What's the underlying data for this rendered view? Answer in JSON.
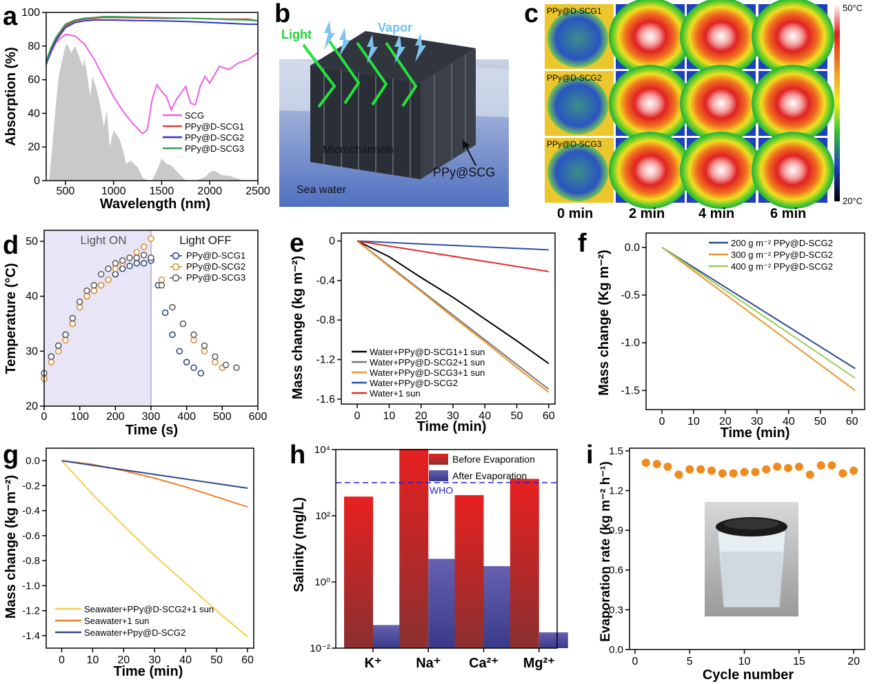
{
  "panels": {
    "a": "a",
    "b": "b",
    "c": "c",
    "d": "d",
    "e": "e",
    "f": "f",
    "g": "g",
    "h": "h",
    "i": "i"
  },
  "panel_b": {
    "light": "Light",
    "vapor": "Vapor",
    "microchannels": "Microchannels",
    "ppy_scg": "PPy@SCG",
    "sea_water": "Sea water"
  },
  "panel_c": {
    "rows": [
      "PPy@D-SCG1",
      "PPy@D-SCG2",
      "PPy@D-SCG3"
    ],
    "times": [
      "0 min",
      "2 min",
      "4 min",
      "6 min"
    ],
    "scale_max": "50°C",
    "scale_min": "20°C"
  },
  "panel_i": {
    "photo": "photo of sample floating in water in a glass beaker"
  },
  "chart_data": [
    {
      "panel": "a",
      "type": "line",
      "xlabel": "Wavelength (nm)",
      "ylabel": "Absorption (%)",
      "xlim": [
        300,
        2500
      ],
      "ylim": [
        0,
        100
      ],
      "xticks": [
        500,
        1000,
        1500,
        2000,
        2500
      ],
      "yticks": [
        0,
        20,
        40,
        60,
        80,
        100
      ],
      "legend_position": "lower-right",
      "solar_spectrum_background": {
        "x": [
          330,
          360,
          400,
          430,
          460,
          500,
          520,
          560,
          600,
          640,
          680,
          700,
          720,
          760,
          780,
          820,
          860,
          900,
          930,
          960,
          1000,
          1060,
          1100,
          1130,
          1180,
          1250,
          1300,
          1350,
          1400,
          1450,
          1500,
          1550,
          1600,
          1650,
          1700,
          1750,
          1800,
          1850,
          1900,
          1950,
          2000,
          2050,
          2100,
          2150,
          2200,
          2250,
          2300,
          2350,
          2400,
          2450,
          2500
        ],
        "y": [
          0,
          18,
          45,
          62,
          70,
          80,
          81,
          76,
          80,
          74,
          68,
          72,
          65,
          50,
          62,
          55,
          45,
          32,
          42,
          20,
          30,
          25,
          18,
          10,
          12,
          8,
          2,
          0,
          0,
          6,
          13,
          10,
          9,
          6,
          3,
          0,
          0,
          0,
          1,
          2,
          5,
          6,
          4,
          3,
          3,
          2,
          1,
          0,
          0,
          0,
          0
        ]
      },
      "series": [
        {
          "name": "SCG",
          "color": "#ee5ee8",
          "x": [
            300,
            400,
            500,
            600,
            700,
            800,
            900,
            1000,
            1100,
            1200,
            1300,
            1350,
            1400,
            1450,
            1500,
            1550,
            1600,
            1650,
            1700,
            1750,
            1800,
            1850,
            1900,
            1950,
            2000,
            2100,
            2200,
            2300,
            2400,
            2500
          ],
          "y": [
            70,
            82,
            87,
            86,
            81,
            72,
            61,
            50,
            41,
            34,
            28,
            30,
            48,
            57,
            53,
            50,
            42,
            48,
            52,
            56,
            46,
            45,
            56,
            62,
            58,
            68,
            66,
            70,
            72,
            76
          ]
        },
        {
          "name": "PPy@D-SCG1",
          "color": "#e33b3b",
          "x": [
            300,
            350,
            400,
            500,
            600,
            700,
            800,
            900,
            1000,
            1200,
            1500,
            1800,
            2000,
            2200,
            2400,
            2500
          ],
          "y": [
            70,
            78,
            84,
            92,
            95,
            96,
            96.5,
            97,
            97,
            96.8,
            96.5,
            96.5,
            96.2,
            96,
            96,
            95
          ]
        },
        {
          "name": "PPy@D-SCG2",
          "color": "#2b35c8",
          "x": [
            300,
            350,
            400,
            500,
            600,
            700,
            800,
            900,
            1000,
            1200,
            1500,
            1800,
            2000,
            2200,
            2400,
            2500
          ],
          "y": [
            69,
            77,
            83,
            91,
            94,
            95,
            95.5,
            95.5,
            95.5,
            95.2,
            95,
            94.5,
            94,
            93.5,
            93,
            93
          ]
        },
        {
          "name": "PPy@D-SCG3",
          "color": "#2e9e52",
          "x": [
            300,
            350,
            400,
            500,
            600,
            700,
            800,
            900,
            1000,
            1200,
            1500,
            1800,
            2000,
            2200,
            2400,
            2500
          ],
          "y": [
            71,
            79,
            85,
            93,
            95.5,
            96.5,
            97,
            97.5,
            97.5,
            97.2,
            96.8,
            96.5,
            96.2,
            95.8,
            95.5,
            95
          ]
        }
      ]
    },
    {
      "panel": "d",
      "type": "scatter",
      "xlabel": "Time (s)",
      "ylabel": "Temperature (°C)",
      "xlim": [
        0,
        600
      ],
      "ylim": [
        20,
        52
      ],
      "xticks": [
        0,
        100,
        200,
        300,
        400,
        500,
        600
      ],
      "yticks": [
        20,
        30,
        40,
        50
      ],
      "annotations": [
        "Light ON",
        "Light OFF"
      ],
      "light_on_range": [
        0,
        300
      ],
      "legend_position": "top-right",
      "series": [
        {
          "name": "PPy@D-SCG1",
          "color": "#1f3d7a",
          "x": [
            0,
            20,
            40,
            60,
            80,
            100,
            120,
            140,
            160,
            180,
            200,
            220,
            240,
            260,
            280,
            300,
            320,
            340,
            360,
            380,
            400,
            420,
            440
          ],
          "y": [
            25,
            29,
            31,
            33,
            35,
            38,
            40,
            41,
            42,
            43,
            44,
            45,
            45.5,
            46,
            46,
            46.5,
            42,
            37,
            33,
            30,
            28,
            27,
            26
          ]
        },
        {
          "name": "PPy@D-SCG2",
          "color": "#e08a2c",
          "x": [
            0,
            20,
            40,
            60,
            80,
            100,
            120,
            140,
            160,
            180,
            200,
            220,
            240,
            260,
            280,
            300,
            330,
            360,
            390,
            420,
            450,
            480,
            500
          ],
          "y": [
            25,
            28,
            30,
            32,
            35,
            38,
            40,
            41,
            42,
            43,
            45,
            46,
            47,
            48,
            49,
            50.5,
            43,
            38,
            35,
            32,
            30,
            28,
            27
          ]
        },
        {
          "name": "PPy@D-SCG3",
          "color": "#555555",
          "x": [
            0,
            20,
            40,
            60,
            80,
            100,
            120,
            140,
            160,
            180,
            200,
            220,
            240,
            260,
            280,
            300,
            330,
            360,
            390,
            420,
            450,
            480,
            510,
            540
          ],
          "y": [
            26,
            29,
            31,
            33,
            36,
            39,
            41,
            42,
            44,
            45,
            46,
            46.5,
            47,
            47,
            47.5,
            47,
            42,
            38,
            35,
            33,
            31,
            29,
            27.5,
            27
          ]
        }
      ]
    },
    {
      "panel": "e",
      "type": "line",
      "xlabel": "Time (min)",
      "ylabel": "Mass change (kg m⁻²)",
      "xlim": [
        -5,
        62
      ],
      "ylim": [
        -1.65,
        0.08
      ],
      "xticks": [
        0,
        10,
        20,
        30,
        40,
        50,
        60
      ],
      "yticks": [
        0,
        -0.4,
        -0.8,
        -1.2,
        -1.6
      ],
      "ytick_labels": [
        "0",
        "-0.4",
        "-0.8",
        "-1.2",
        "-1.6"
      ],
      "legend_position": "bottom-left",
      "series": [
        {
          "name": "Water+PPy@D-SCG1+1 sun",
          "color": "#000000",
          "x": [
            0,
            10,
            20,
            30,
            40,
            50,
            60
          ],
          "y": [
            0,
            -0.16,
            -0.37,
            -0.57,
            -0.79,
            -1.01,
            -1.24
          ]
        },
        {
          "name": "Water+PPy@D-SCG2+1 sun",
          "color": "#777777",
          "x": [
            0,
            10,
            20,
            30,
            40,
            50,
            60
          ],
          "y": [
            0,
            -0.25,
            -0.5,
            -0.75,
            -1.0,
            -1.25,
            -1.5
          ]
        },
        {
          "name": "Water+PPy@D-SCG3+1 sun",
          "color": "#f0922c",
          "x": [
            0,
            10,
            20,
            30,
            40,
            50,
            60
          ],
          "y": [
            0,
            -0.26,
            -0.51,
            -0.77,
            -1.02,
            -1.28,
            -1.53
          ]
        },
        {
          "name": "Water+PPy@D-SCG2",
          "color": "#2c50a8",
          "x": [
            0,
            60
          ],
          "y": [
            0,
            -0.09
          ]
        },
        {
          "name": "Water+1 sun",
          "color": "#e02a2a",
          "x": [
            0,
            60
          ],
          "y": [
            0,
            -0.31
          ]
        }
      ]
    },
    {
      "panel": "f",
      "type": "line",
      "xlabel": "Time (min)",
      "ylabel": "Mass change (Kg m⁻²)",
      "xlim": [
        -5,
        64
      ],
      "ylim": [
        -1.7,
        0.15
      ],
      "xticks": [
        0,
        10,
        20,
        30,
        40,
        50,
        60
      ],
      "yticks": [
        0.0,
        -0.5,
        -1.0,
        -1.5
      ],
      "ytick_labels": [
        "0.0",
        "-0.5",
        "-1.0",
        "-1.5"
      ],
      "legend_position": "top-right",
      "series": [
        {
          "name": "200 g m⁻² PPy@D-SCG2",
          "color": "#2c4a8a",
          "x": [
            0,
            61
          ],
          "y": [
            0,
            -1.27
          ]
        },
        {
          "name": "300 g m⁻² PPy@D-SCG2",
          "color": "#f0922c",
          "x": [
            0,
            61
          ],
          "y": [
            0,
            -1.5
          ]
        },
        {
          "name": "400 g m⁻² PPy@D-SCG2",
          "color": "#9ccc55",
          "x": [
            0,
            61
          ],
          "y": [
            0,
            -1.37
          ]
        }
      ]
    },
    {
      "panel": "g",
      "type": "line",
      "xlabel": "Time (min)",
      "ylabel": "Mass change (kg m⁻²)",
      "xlim": [
        -5,
        62
      ],
      "ylim": [
        -1.5,
        0.1
      ],
      "xticks": [
        0,
        10,
        20,
        30,
        40,
        50,
        60
      ],
      "yticks": [
        0.0,
        -0.2,
        -0.4,
        -0.6,
        -0.8,
        -1.0,
        -1.2,
        -1.4
      ],
      "ytick_labels": [
        "0.0",
        "-0.2",
        "-0.4",
        "-0.6",
        "-0.8",
        "-1.0",
        "-1.2",
        "-1.4"
      ],
      "legend_position": "bottom-left",
      "series": [
        {
          "name": "Seawater+PPy@D-SCG2+1 sun",
          "color": "#f5cf4a",
          "x": [
            0,
            10,
            20,
            30,
            40,
            50,
            60
          ],
          "y": [
            0,
            -0.27,
            -0.52,
            -0.76,
            -0.98,
            -1.2,
            -1.41
          ]
        },
        {
          "name": "Seawater+1 sun",
          "color": "#f07d2a",
          "x": [
            0,
            10,
            20,
            30,
            40,
            50,
            60
          ],
          "y": [
            0,
            -0.03,
            -0.08,
            -0.14,
            -0.21,
            -0.29,
            -0.37
          ]
        },
        {
          "name": "Seawater+Ppy@D-SCG2",
          "color": "#2c4a8a",
          "x": [
            0,
            60
          ],
          "y": [
            0,
            -0.22
          ]
        }
      ]
    },
    {
      "panel": "h",
      "type": "bar",
      "scale": "log",
      "ylabel": "Salinity (mg/L)",
      "categories": [
        "K⁺",
        "Na⁺",
        "Ca²⁺",
        "Mg²⁺"
      ],
      "ylim": [
        0.01,
        10000
      ],
      "ytick_labels": [
        "10⁻²",
        "10⁰",
        "10²",
        "10⁴"
      ],
      "who_line": 1000,
      "who_label": "WHO",
      "legend_position": "top-right",
      "series": [
        {
          "name": "Before Evaporation",
          "color": "#e02020",
          "values": [
            380,
            10500,
            420,
            1300
          ]
        },
        {
          "name": "After Evaporation",
          "color": "#5a50a8",
          "values": [
            0.05,
            5,
            3,
            0.03
          ]
        }
      ]
    },
    {
      "panel": "i",
      "type": "scatter",
      "xlabel": "Cycle number",
      "ylabel": "Evaporation rate (kg m⁻² h⁻¹)",
      "xlim": [
        -0.5,
        21
      ],
      "ylim": [
        0,
        1.52
      ],
      "xticks": [
        0,
        5,
        10,
        15,
        20
      ],
      "yticks": [
        0.0,
        0.3,
        0.6,
        0.9,
        1.2,
        1.5
      ],
      "ytick_labels": [
        "0.0",
        "0.3",
        "0.6",
        "0.9",
        "1.2",
        "1.5"
      ],
      "series": [
        {
          "name": "",
          "color": "#f08a1e",
          "x": [
            1,
            2,
            3,
            4,
            5,
            6,
            7,
            8,
            9,
            10,
            11,
            12,
            13,
            14,
            15,
            16,
            17,
            18,
            19,
            20
          ],
          "y": [
            1.41,
            1.4,
            1.38,
            1.32,
            1.36,
            1.36,
            1.35,
            1.33,
            1.33,
            1.34,
            1.34,
            1.36,
            1.38,
            1.37,
            1.38,
            1.32,
            1.39,
            1.39,
            1.33,
            1.35
          ]
        }
      ]
    }
  ]
}
